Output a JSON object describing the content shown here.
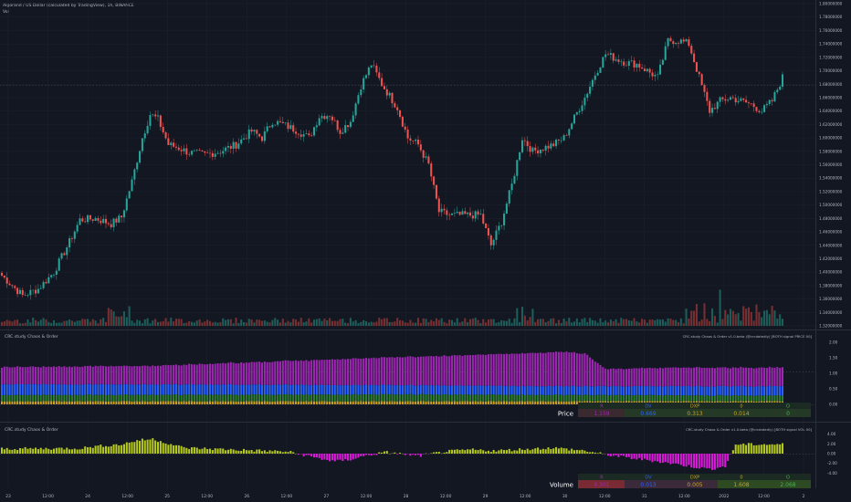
{
  "header": {
    "symbol_line": "Algorand / US Dollar (calculated by TradingView), 1h, BINANCE",
    "vol_label": "Vol"
  },
  "pane2": {
    "left_title": "CRC.study Chaos & Order",
    "right_title": "CRC.study Chaos & Order v1.0.beta (@crcdatedly) [BOTH signal PRICE 00]",
    "yticks": [
      "2.00",
      "1.50",
      "1.00",
      "0.50",
      "0.00"
    ],
    "table_label": "Price",
    "table_headers": [
      "R",
      "DV",
      "DXP",
      "0",
      "O"
    ],
    "table_values": [
      "1.159",
      "0.669",
      "0.313",
      "0.014",
      "0"
    ]
  },
  "pane3": {
    "left_title": "CRC.study Chaos & Order",
    "right_title": "CRC.study Chaos & Order v1.0.beta (@crcdatedly) [BOTH signal VOL 00]",
    "yticks": [
      "4.00",
      "2.00",
      "0.00",
      "-2.00",
      "-4.00"
    ],
    "table_label": "Volume",
    "table_headers": [
      "R",
      "DV",
      "DXP",
      "0",
      "O"
    ],
    "table_values": [
      "4.301",
      "0.013",
      "0.005",
      "1.608",
      "2.068"
    ]
  },
  "colors": {
    "background": "#131722",
    "up": "#26a69a",
    "down": "#ef5350",
    "purple": "#9c27b0",
    "blue": "#2962ff",
    "gold": "#c9a227",
    "yellowgreen": "#b6c91f",
    "magenta": "#d81bd8",
    "grid": "#1e222d",
    "text": "#b2b5be"
  },
  "chart_data": [
    {
      "type": "candlestick",
      "title": "Algorand / US Dollar (calculated by TradingView), 1h, BINANCE",
      "yaxis_ticks": [
        "1.80000000",
        "1.78000000",
        "1.76000000",
        "1.74000000",
        "1.72000000",
        "1.70000000",
        "1.68000000",
        "1.66000000",
        "1.64000000",
        "1.62000000",
        "1.60000000",
        "1.58000000",
        "1.56000000",
        "1.54000000",
        "1.52000000",
        "1.50000000",
        "1.48000000",
        "1.46000000",
        "1.44000000",
        "1.42000000",
        "1.40000000",
        "1.38000000",
        "1.36000000",
        "1.34000000",
        "1.32000000"
      ],
      "ylim": [
        1.32,
        1.8
      ],
      "xaxis_ticks": [
        "23",
        "12:00",
        "24",
        "12:00",
        "25",
        "12:00",
        "26",
        "12:00",
        "27",
        "12:00",
        "28",
        "12:00",
        "29",
        "12:00",
        "30",
        "12:00",
        "31",
        "12:00",
        "2022",
        "12:00",
        "2"
      ],
      "close_keypoints": [
        [
          0,
          1.395
        ],
        [
          8,
          1.365
        ],
        [
          14,
          1.375
        ],
        [
          20,
          1.4
        ],
        [
          26,
          1.445
        ],
        [
          30,
          1.478
        ],
        [
          36,
          1.48
        ],
        [
          42,
          1.472
        ],
        [
          46,
          1.482
        ],
        [
          50,
          1.535
        ],
        [
          54,
          1.6
        ],
        [
          57,
          1.635
        ],
        [
          60,
          1.628
        ],
        [
          64,
          1.59
        ],
        [
          68,
          1.585
        ],
        [
          72,
          1.578
        ],
        [
          78,
          1.575
        ],
        [
          84,
          1.58
        ],
        [
          90,
          1.59
        ],
        [
          96,
          1.61
        ],
        [
          100,
          1.6
        ],
        [
          104,
          1.625
        ],
        [
          108,
          1.62
        ],
        [
          114,
          1.61
        ],
        [
          118,
          1.6
        ],
        [
          122,
          1.632
        ],
        [
          126,
          1.635
        ],
        [
          130,
          1.61
        ],
        [
          134,
          1.625
        ],
        [
          138,
          1.678
        ],
        [
          142,
          1.71
        ],
        [
          146,
          1.68
        ],
        [
          152,
          1.645
        ],
        [
          156,
          1.6
        ],
        [
          160,
          1.59
        ],
        [
          164,
          1.56
        ],
        [
          168,
          1.49
        ],
        [
          172,
          1.485
        ],
        [
          178,
          1.485
        ],
        [
          184,
          1.485
        ],
        [
          188,
          1.44
        ],
        [
          192,
          1.475
        ],
        [
          196,
          1.53
        ],
        [
          200,
          1.6
        ],
        [
          204,
          1.58
        ],
        [
          208,
          1.585
        ],
        [
          212,
          1.59
        ],
        [
          216,
          1.6
        ],
        [
          220,
          1.63
        ],
        [
          224,
          1.66
        ],
        [
          228,
          1.695
        ],
        [
          232,
          1.725
        ],
        [
          236,
          1.718
        ],
        [
          240,
          1.712
        ],
        [
          244,
          1.71
        ],
        [
          248,
          1.7
        ],
        [
          252,
          1.69
        ],
        [
          256,
          1.745
        ],
        [
          260,
          1.745
        ],
        [
          264,
          1.74
        ],
        [
          268,
          1.69
        ],
        [
          272,
          1.64
        ],
        [
          276,
          1.655
        ],
        [
          280,
          1.66
        ],
        [
          284,
          1.655
        ],
        [
          288,
          1.65
        ],
        [
          292,
          1.64
        ],
        [
          296,
          1.655
        ],
        [
          300,
          1.69
        ]
      ],
      "volume_profile": "volume spikes on 26 and on 31 – 2022"
    },
    {
      "type": "stacked-bar",
      "title": "CRC.study Chaos & Order",
      "ylim": [
        0,
        2.2
      ],
      "series": [
        {
          "name": "R",
          "keypoints": [
            [
              0,
              0.55
            ],
            [
              60,
              0.6
            ],
            [
              120,
              0.8
            ],
            [
              170,
              0.95
            ],
            [
              200,
              1.05
            ],
            [
              216,
              1.1
            ],
            [
              224,
              1.05
            ],
            [
              232,
              0.55
            ],
            [
              260,
              0.6
            ],
            [
              300,
              0.6
            ]
          ]
        },
        {
          "name": "DV",
          "keypoints": [
            [
              0,
              0.35
            ],
            [
              100,
              0.32
            ],
            [
              200,
              0.28
            ],
            [
              300,
              0.3
            ]
          ]
        },
        {
          "name": "DXP",
          "keypoints": [
            [
              0,
              0.2
            ],
            [
              150,
              0.22
            ],
            [
              300,
              0.18
            ]
          ]
        },
        {
          "name": "0",
          "keypoints": [
            [
              0,
              0.1
            ],
            [
              300,
              0.1
            ]
          ]
        }
      ]
    },
    {
      "type": "bar",
      "title": "CRC.study Chaos & Order",
      "ylim": [
        -4.5,
        4.5
      ],
      "keypoints": [
        [
          0,
          1.0
        ],
        [
          30,
          1.1
        ],
        [
          36,
          1.5
        ],
        [
          46,
          1.9
        ],
        [
          52,
          2.7
        ],
        [
          58,
          3.0
        ],
        [
          62,
          2.4
        ],
        [
          70,
          1.2
        ],
        [
          100,
          0.6
        ],
        [
          110,
          0.4
        ],
        [
          116,
          -0.3
        ],
        [
          122,
          -1.0
        ],
        [
          128,
          -1.6
        ],
        [
          134,
          -1.2
        ],
        [
          140,
          -0.4
        ],
        [
          148,
          0.3
        ],
        [
          160,
          -0.5
        ],
        [
          170,
          0.4
        ],
        [
          180,
          0.8
        ],
        [
          190,
          0.6
        ],
        [
          200,
          0.9
        ],
        [
          212,
          1.2
        ],
        [
          224,
          0.6
        ],
        [
          232,
          -0.2
        ],
        [
          240,
          -0.8
        ],
        [
          252,
          -1.6
        ],
        [
          262,
          -2.4
        ],
        [
          272,
          -3.2
        ],
        [
          278,
          -2.6
        ],
        [
          282,
          1.9
        ],
        [
          300,
          1.9
        ]
      ]
    }
  ]
}
